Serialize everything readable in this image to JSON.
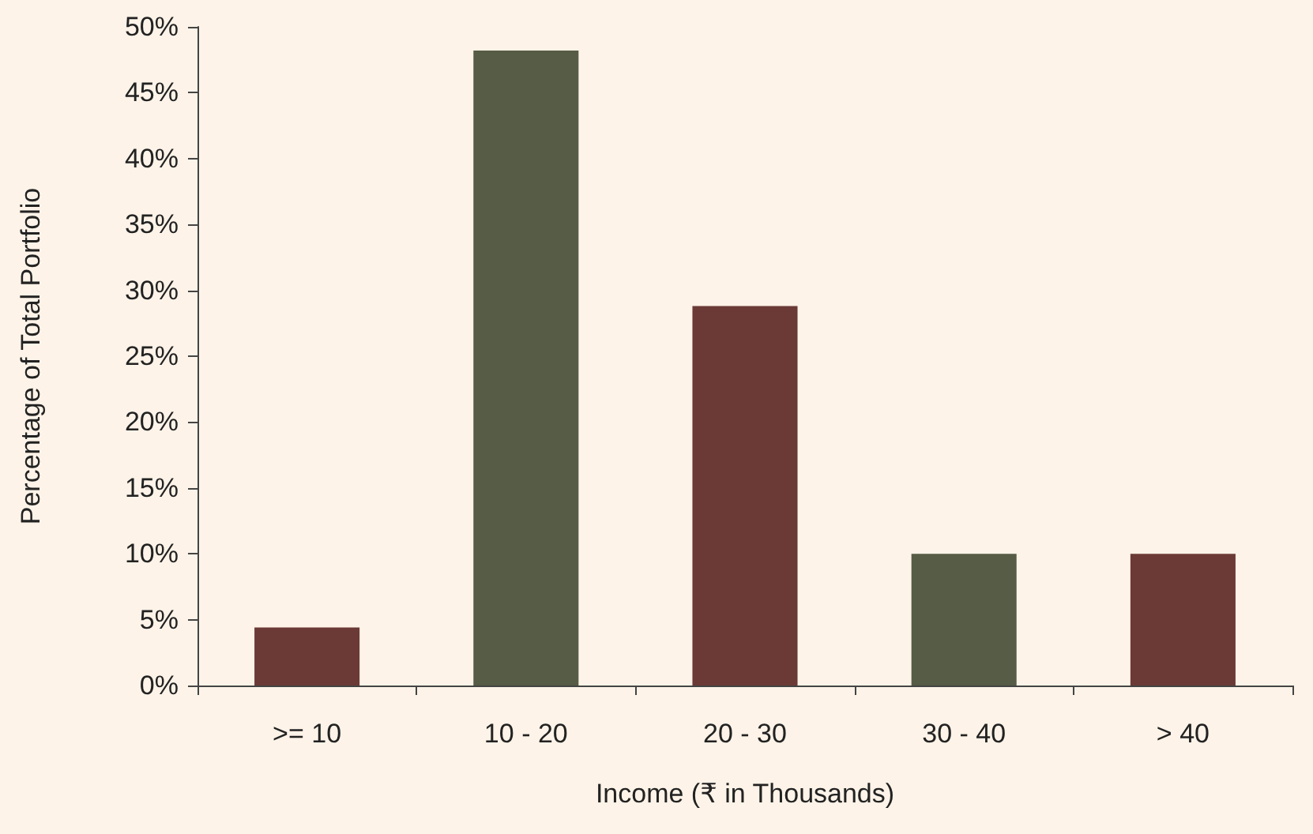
{
  "chart_data": {
    "type": "bar",
    "xlabel": "Income (₹ in Thousands)",
    "ylabel": "Percentage of Total Portfolio",
    "categories": [
      ">= 10",
      "10 - 20",
      "20 - 30",
      "30 - 40",
      "> 40"
    ],
    "values": [
      4.4,
      48.2,
      28.8,
      10,
      10
    ],
    "colors": [
      "#6b3a36",
      "#565c45",
      "#6b3a36",
      "#565c45",
      "#6b3a36"
    ],
    "ylim": [
      0,
      50
    ],
    "yticks": [
      {
        "value": 0,
        "label": "0%"
      },
      {
        "value": 5,
        "label": "5%"
      },
      {
        "value": 10,
        "label": "10%"
      },
      {
        "value": 15,
        "label": "15%"
      },
      {
        "value": 20,
        "label": "20%"
      },
      {
        "value": 25,
        "label": "25%"
      },
      {
        "value": 30,
        "label": "30%"
      },
      {
        "value": 35,
        "label": "35%"
      },
      {
        "value": 40,
        "label": "40%"
      },
      {
        "value": 45,
        "label": "45%"
      },
      {
        "value": 50,
        "label": "50%"
      }
    ],
    "grid": false
  }
}
